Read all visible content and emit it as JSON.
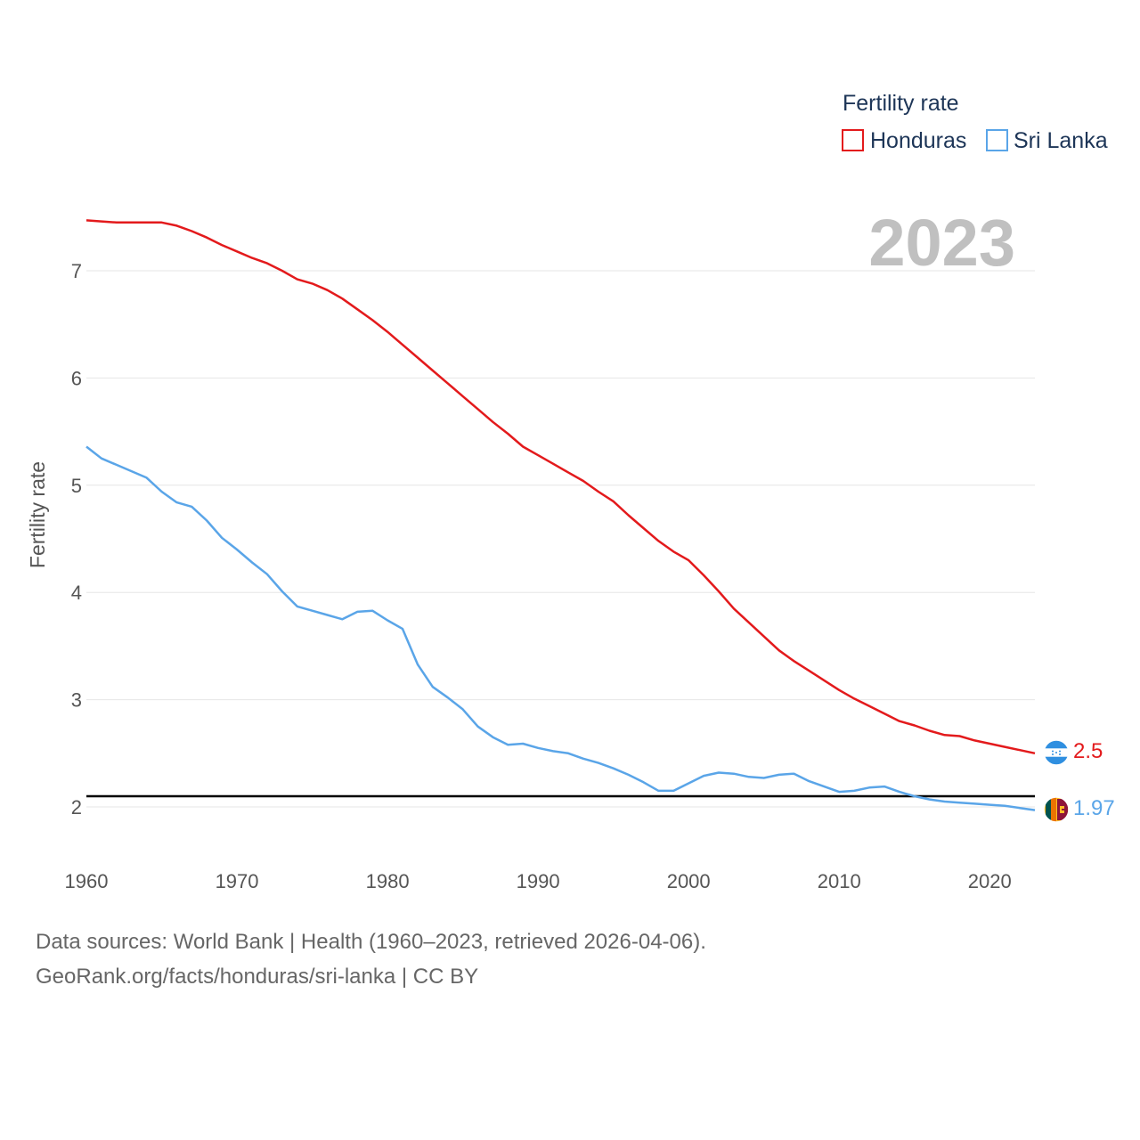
{
  "chart_data": {
    "type": "line",
    "year_label": "2023",
    "ylabel": "Fertility rate",
    "xlabel": "",
    "xlim": [
      1960,
      2023
    ],
    "ylim": [
      1.5,
      7.8
    ],
    "yticks": [
      2,
      3,
      4,
      5,
      6,
      7
    ],
    "xticks": [
      1960,
      1970,
      1980,
      1990,
      2000,
      2010,
      2020
    ],
    "ytick_labels": [
      "2",
      "3",
      "4",
      "5",
      "6",
      "7"
    ],
    "xtick_labels": [
      "1960",
      "1970",
      "1980",
      "1990",
      "2000",
      "2010",
      "2020"
    ],
    "reference_line": 2.1,
    "legend": {
      "title": "Fertility rate",
      "position": "top-right"
    },
    "x": [
      1960,
      1961,
      1962,
      1963,
      1964,
      1965,
      1966,
      1967,
      1968,
      1969,
      1970,
      1971,
      1972,
      1973,
      1974,
      1975,
      1976,
      1977,
      1978,
      1979,
      1980,
      1981,
      1982,
      1983,
      1984,
      1985,
      1986,
      1987,
      1988,
      1989,
      1990,
      1991,
      1992,
      1993,
      1994,
      1995,
      1996,
      1997,
      1998,
      1999,
      2000,
      2001,
      2002,
      2003,
      2004,
      2005,
      2006,
      2007,
      2008,
      2009,
      2010,
      2011,
      2012,
      2013,
      2014,
      2015,
      2016,
      2017,
      2018,
      2019,
      2020,
      2021,
      2022,
      2023
    ],
    "series": [
      {
        "name": "Honduras",
        "color": "#e31a1c",
        "end_label": "2.5",
        "flag_icon": "honduras-flag-icon",
        "values": [
          7.47,
          7.46,
          7.45,
          7.45,
          7.45,
          7.45,
          7.42,
          7.37,
          7.31,
          7.24,
          7.18,
          7.12,
          7.07,
          7.0,
          6.92,
          6.88,
          6.82,
          6.74,
          6.64,
          6.54,
          6.43,
          6.31,
          6.19,
          6.07,
          5.95,
          5.83,
          5.71,
          5.59,
          5.48,
          5.36,
          5.28,
          5.2,
          5.12,
          5.04,
          4.94,
          4.85,
          4.72,
          4.6,
          4.48,
          4.38,
          4.3,
          4.16,
          4.01,
          3.85,
          3.72,
          3.59,
          3.46,
          3.36,
          3.27,
          3.18,
          3.09,
          3.01,
          2.94,
          2.87,
          2.8,
          2.76,
          2.71,
          2.67,
          2.66,
          2.62,
          2.59,
          2.56,
          2.53,
          2.5
        ]
      },
      {
        "name": "Sri Lanka",
        "color": "#5aa5e8",
        "end_label": "1.97",
        "flag_icon": "sri-lanka-flag-icon",
        "values": [
          5.36,
          5.25,
          5.19,
          5.13,
          5.07,
          4.94,
          4.84,
          4.8,
          4.67,
          4.51,
          4.4,
          4.28,
          4.17,
          4.01,
          3.87,
          3.83,
          3.79,
          3.75,
          3.82,
          3.83,
          3.74,
          3.66,
          3.33,
          3.12,
          3.02,
          2.91,
          2.75,
          2.65,
          2.58,
          2.59,
          2.55,
          2.52,
          2.5,
          2.45,
          2.41,
          2.36,
          2.3,
          2.23,
          2.15,
          2.15,
          2.22,
          2.29,
          2.32,
          2.31,
          2.28,
          2.27,
          2.3,
          2.31,
          2.24,
          2.19,
          2.14,
          2.15,
          2.18,
          2.19,
          2.14,
          2.1,
          2.07,
          2.05,
          2.04,
          2.03,
          2.02,
          2.01,
          1.99,
          1.97
        ]
      }
    ]
  },
  "footer": {
    "sources": "Data sources: World Bank | Health (1960–2023, retrieved 2026-04-06).",
    "attribution": "GeoRank.org/facts/honduras/sri-lanka | CC BY"
  }
}
